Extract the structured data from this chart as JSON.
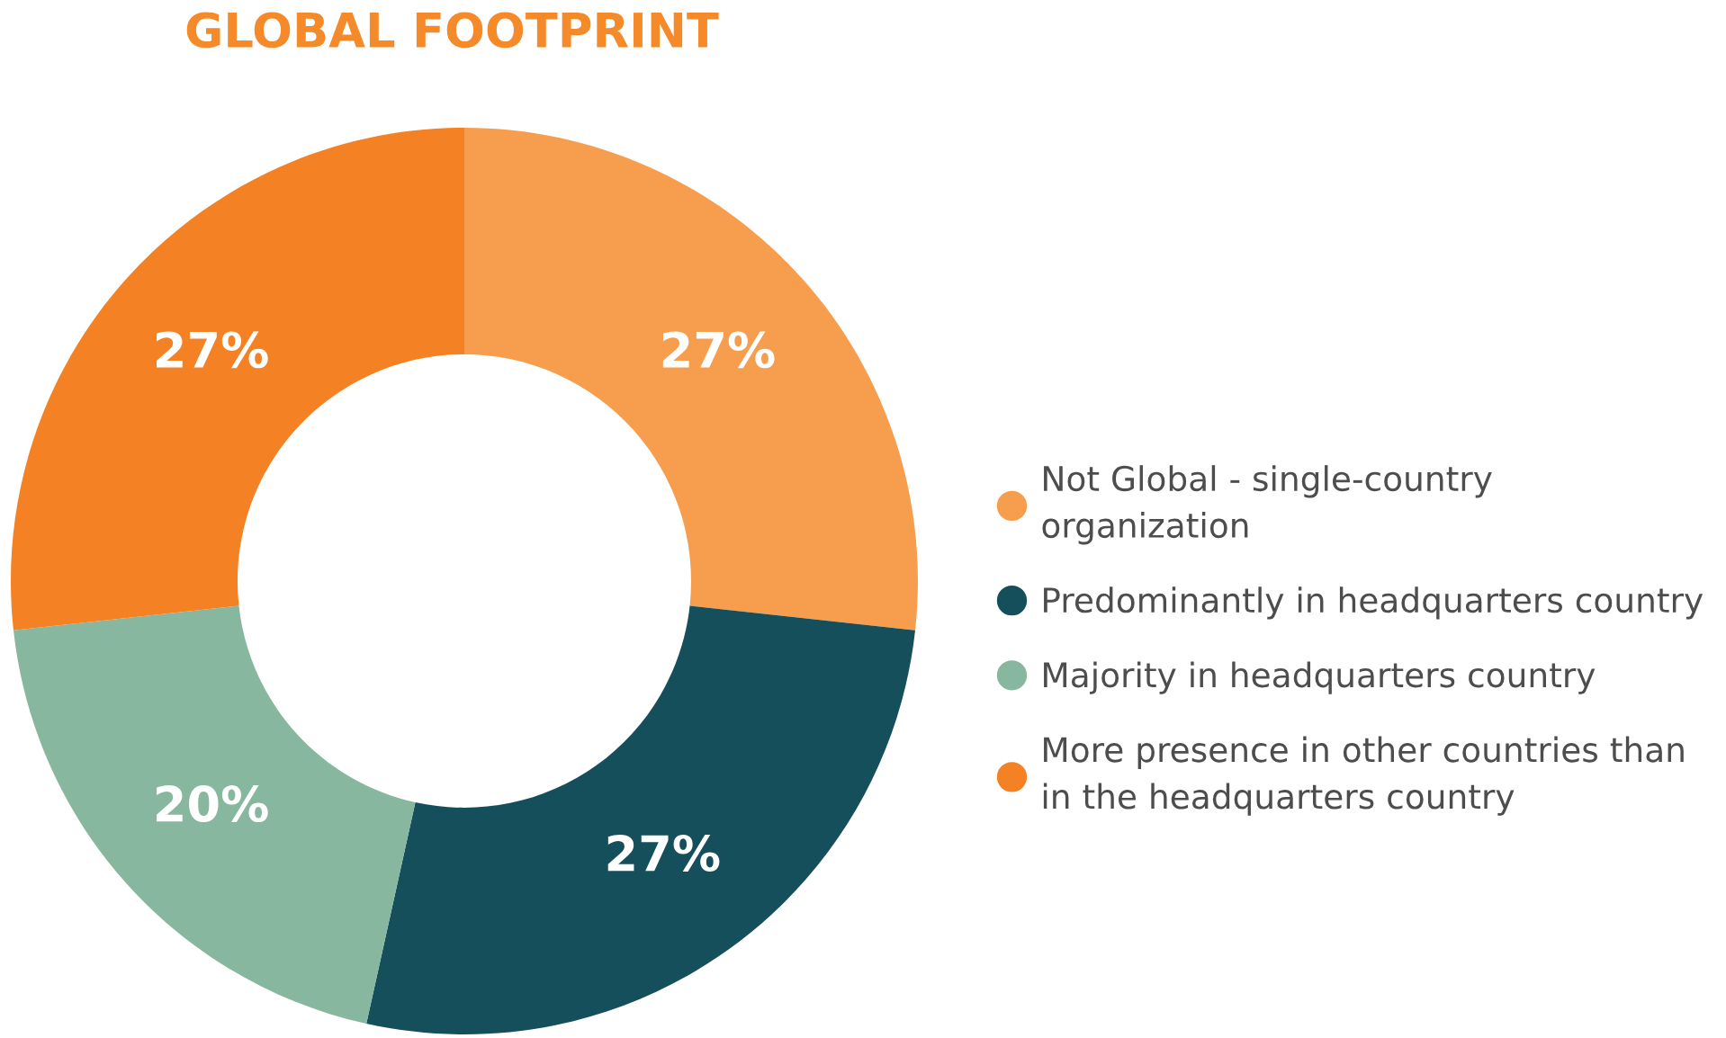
{
  "chart_data": {
    "type": "donut",
    "title": "GLOBAL FOOTPRINT",
    "categories": [
      "Not Global - single-country\norganization",
      "Predominantly in headquarters country",
      "Majority in headquarters country",
      "More presence in other countries than\nin the headquarters country"
    ],
    "values": [
      27,
      27,
      20,
      27
    ],
    "value_labels": [
      "27%",
      "27%",
      "20%",
      "27%"
    ],
    "colors": [
      "#f79e4e",
      "#164f5c",
      "#88b79f",
      "#f48224"
    ],
    "legend": "right"
  }
}
